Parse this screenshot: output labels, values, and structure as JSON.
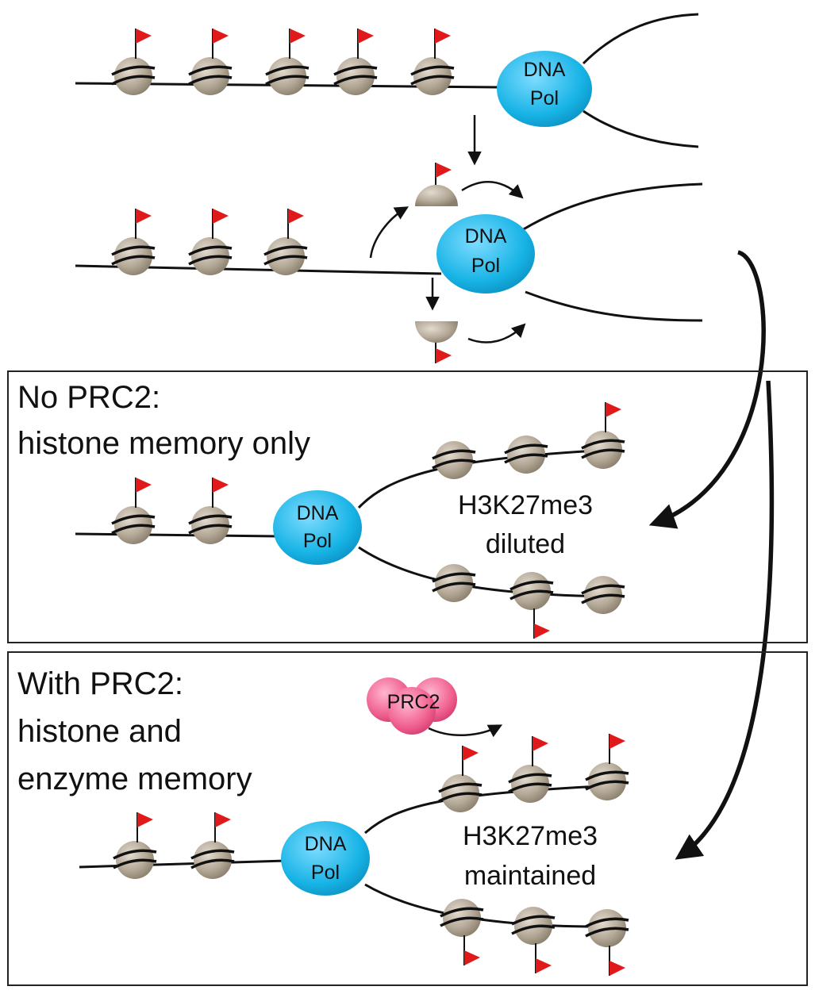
{
  "colors": {
    "nucleosome": "#b5a998",
    "mark_flag": "#e01a1a",
    "dna_pol": "#18b4e6",
    "prc2": "#f0608f",
    "dna_strand": "#111111",
    "panel_border": "#222222"
  },
  "top": {
    "pol1": {
      "line1": "DNA",
      "line2": "Pol"
    },
    "pol2": {
      "line1": "DNA",
      "line2": "Pol"
    }
  },
  "panel_no_prc2": {
    "title_line1": "No PRC2:",
    "title_line2": "histone memory only",
    "pol": {
      "line1": "DNA",
      "line2": "Pol"
    },
    "label_line1": "H3K27me3",
    "label_line2": "diluted"
  },
  "panel_with_prc2": {
    "title_line1": "With PRC2:",
    "title_line2": "histone and",
    "title_line3": "enzyme memory",
    "enzyme": "PRC2",
    "pol": {
      "line1": "DNA",
      "line2": "Pol"
    },
    "label_line1": "H3K27me3",
    "label_line2": "maintained"
  },
  "icons": [
    "nucleosome-icon",
    "methyl-mark-flag-icon",
    "dna-polymerase-icon",
    "prc2-enzyme-icon",
    "arrow-icon"
  ]
}
